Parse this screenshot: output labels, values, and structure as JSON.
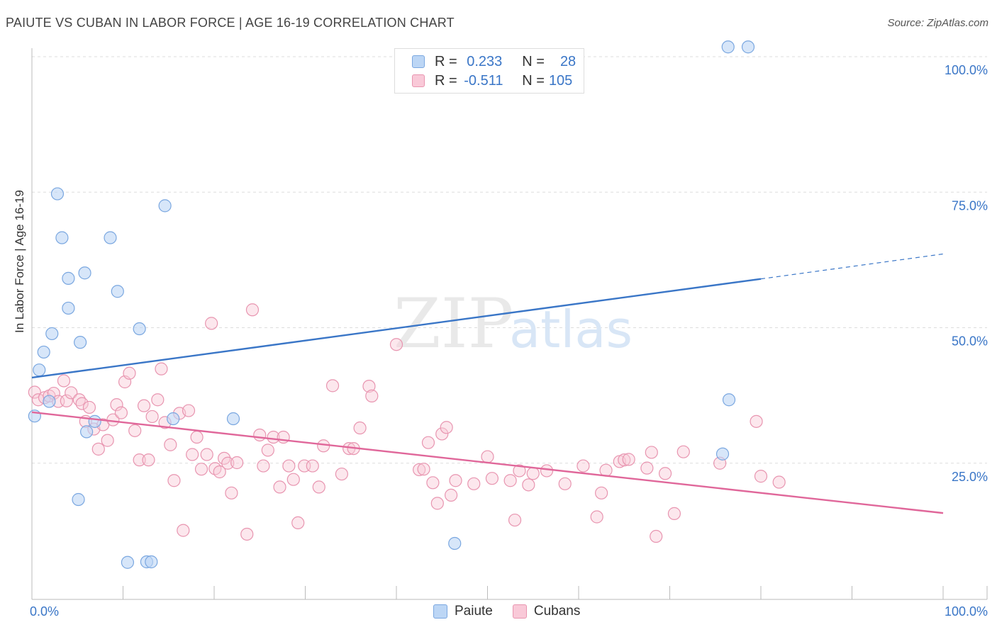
{
  "title": "PAIUTE VS CUBAN IN LABOR FORCE | AGE 16-19 CORRELATION CHART",
  "source": "Source: ZipAtlas.com",
  "watermark": {
    "zip": "ZIP",
    "atlas": "atlas"
  },
  "legend_top": {
    "paiute": {
      "r_label": "R =",
      "r_value": "0.233",
      "n_label": "N =",
      "n_value": "28"
    },
    "cubans": {
      "r_label": "R =",
      "r_value": "-0.511",
      "n_label": "N =",
      "n_value": "105"
    }
  },
  "legend_bottom": {
    "paiute": "Paiute",
    "cubans": "Cubans"
  },
  "colors": {
    "paiute_fill": "#bcd6f5",
    "paiute_stroke": "#7aa7e0",
    "paiute_line": "#3a76c7",
    "cubans_fill": "#f9c9d8",
    "cubans_stroke": "#e895b0",
    "cubans_line": "#e0679a",
    "tick_label": "#3a76c7",
    "grid": "#dddddd"
  },
  "chart_data": {
    "type": "scatter",
    "title": "PAIUTE VS CUBAN IN LABOR FORCE | AGE 16-19 CORRELATION CHART",
    "xlabel": "",
    "ylabel": "In Labor Force | Age 16-19",
    "xlim": [
      0,
      100
    ],
    "ylim": [
      0,
      100
    ],
    "x_tick_labels": [
      "0.0%",
      "100.0%"
    ],
    "y_ticks": [
      25,
      50,
      75,
      100
    ],
    "y_tick_labels": [
      "25.0%",
      "50.0%",
      "75.0%",
      "100.0%"
    ],
    "series": [
      {
        "name": "Paiute",
        "r": 0.233,
        "n": 28,
        "trend": {
          "x0": 0,
          "y0": 40.8,
          "x1": 80,
          "y1": 59.0,
          "dashed_to_x": 100,
          "dashed_to_y": 63.6
        },
        "points": [
          [
            0.3,
            33.7
          ],
          [
            0.8,
            42.2
          ],
          [
            1.3,
            45.5
          ],
          [
            1.9,
            36.4
          ],
          [
            2.2,
            48.9
          ],
          [
            2.8,
            74.7
          ],
          [
            3.3,
            66.6
          ],
          [
            4.0,
            59.1
          ],
          [
            4.0,
            53.6
          ],
          [
            5.3,
            47.3
          ],
          [
            5.8,
            60.1
          ],
          [
            6.0,
            30.8
          ],
          [
            6.9,
            32.7
          ],
          [
            5.1,
            18.3
          ],
          [
            8.6,
            66.6
          ],
          [
            9.4,
            56.7
          ],
          [
            10.5,
            6.7
          ],
          [
            11.8,
            49.8
          ],
          [
            12.6,
            6.8
          ],
          [
            13.1,
            6.8
          ],
          [
            14.6,
            72.5
          ],
          [
            15.5,
            33.2
          ],
          [
            22.1,
            33.2
          ],
          [
            46.4,
            10.2
          ],
          [
            76.5,
            36.7
          ],
          [
            75.8,
            26.7
          ],
          [
            76.4,
            101.8
          ],
          [
            78.6,
            101.8
          ]
        ]
      },
      {
        "name": "Cubans",
        "r": -0.511,
        "n": 105,
        "trend": {
          "x0": 0,
          "y0": 34.4,
          "x1": 100,
          "y1": 15.8
        },
        "points": [
          [
            0.3,
            38.1
          ],
          [
            0.7,
            36.7
          ],
          [
            1.4,
            37.1
          ],
          [
            1.9,
            37.4
          ],
          [
            2.4,
            37.9
          ],
          [
            2.9,
            36.4
          ],
          [
            3.5,
            40.2
          ],
          [
            3.8,
            36.5
          ],
          [
            4.3,
            38.0
          ],
          [
            5.2,
            36.7
          ],
          [
            5.5,
            36.0
          ],
          [
            5.9,
            32.7
          ],
          [
            6.3,
            35.3
          ],
          [
            6.8,
            31.3
          ],
          [
            7.3,
            27.6
          ],
          [
            7.8,
            32.1
          ],
          [
            8.3,
            29.2
          ],
          [
            8.9,
            33.0
          ],
          [
            9.3,
            35.8
          ],
          [
            9.8,
            34.3
          ],
          [
            10.2,
            40.0
          ],
          [
            10.7,
            41.6
          ],
          [
            11.3,
            31.0
          ],
          [
            11.8,
            25.6
          ],
          [
            12.3,
            35.6
          ],
          [
            12.8,
            25.6
          ],
          [
            13.2,
            33.6
          ],
          [
            13.8,
            36.7
          ],
          [
            14.2,
            42.4
          ],
          [
            14.6,
            32.5
          ],
          [
            15.2,
            28.4
          ],
          [
            15.6,
            21.8
          ],
          [
            16.2,
            34.2
          ],
          [
            16.6,
            12.6
          ],
          [
            17.2,
            34.7
          ],
          [
            17.6,
            26.6
          ],
          [
            18.1,
            29.8
          ],
          [
            18.6,
            23.9
          ],
          [
            19.2,
            26.6
          ],
          [
            19.7,
            50.8
          ],
          [
            20.1,
            24.0
          ],
          [
            20.6,
            23.4
          ],
          [
            21.1,
            25.9
          ],
          [
            21.5,
            25.0
          ],
          [
            21.9,
            19.5
          ],
          [
            22.5,
            25.1
          ],
          [
            23.6,
            11.9
          ],
          [
            24.2,
            53.3
          ],
          [
            25.0,
            30.2
          ],
          [
            25.4,
            24.5
          ],
          [
            25.9,
            27.4
          ],
          [
            26.5,
            29.8
          ],
          [
            27.2,
            20.6
          ],
          [
            27.6,
            29.8
          ],
          [
            28.2,
            24.5
          ],
          [
            28.7,
            22.0
          ],
          [
            29.2,
            14.0
          ],
          [
            29.9,
            24.5
          ],
          [
            30.8,
            24.5
          ],
          [
            31.5,
            20.6
          ],
          [
            32.0,
            28.2
          ],
          [
            33.0,
            39.3
          ],
          [
            34.0,
            23.0
          ],
          [
            34.8,
            27.7
          ],
          [
            35.3,
            27.7
          ],
          [
            36.0,
            31.5
          ],
          [
            37.0,
            39.2
          ],
          [
            37.3,
            37.4
          ],
          [
            40.0,
            46.9
          ],
          [
            42.5,
            23.8
          ],
          [
            43.0,
            23.9
          ],
          [
            43.5,
            28.8
          ],
          [
            44.0,
            21.4
          ],
          [
            44.5,
            17.6
          ],
          [
            45.0,
            30.4
          ],
          [
            45.5,
            31.6
          ],
          [
            46.0,
            19.1
          ],
          [
            46.5,
            21.8
          ],
          [
            48.5,
            21.2
          ],
          [
            50.0,
            26.2
          ],
          [
            50.5,
            22.2
          ],
          [
            52.5,
            21.8
          ],
          [
            53.0,
            14.5
          ],
          [
            53.5,
            23.6
          ],
          [
            54.5,
            21.0
          ],
          [
            55.0,
            23.1
          ],
          [
            56.5,
            23.6
          ],
          [
            58.5,
            21.2
          ],
          [
            60.5,
            24.5
          ],
          [
            62.0,
            15.1
          ],
          [
            62.5,
            19.5
          ],
          [
            63.0,
            23.7
          ],
          [
            64.5,
            25.3
          ],
          [
            65.0,
            25.6
          ],
          [
            65.5,
            25.7
          ],
          [
            67.5,
            24.1
          ],
          [
            68.0,
            27.0
          ],
          [
            68.5,
            11.5
          ],
          [
            69.5,
            23.1
          ],
          [
            70.5,
            15.7
          ],
          [
            71.5,
            27.1
          ],
          [
            75.5,
            25.0
          ],
          [
            80.0,
            22.6
          ],
          [
            82.0,
            21.5
          ],
          [
            79.5,
            32.7
          ]
        ]
      }
    ]
  }
}
